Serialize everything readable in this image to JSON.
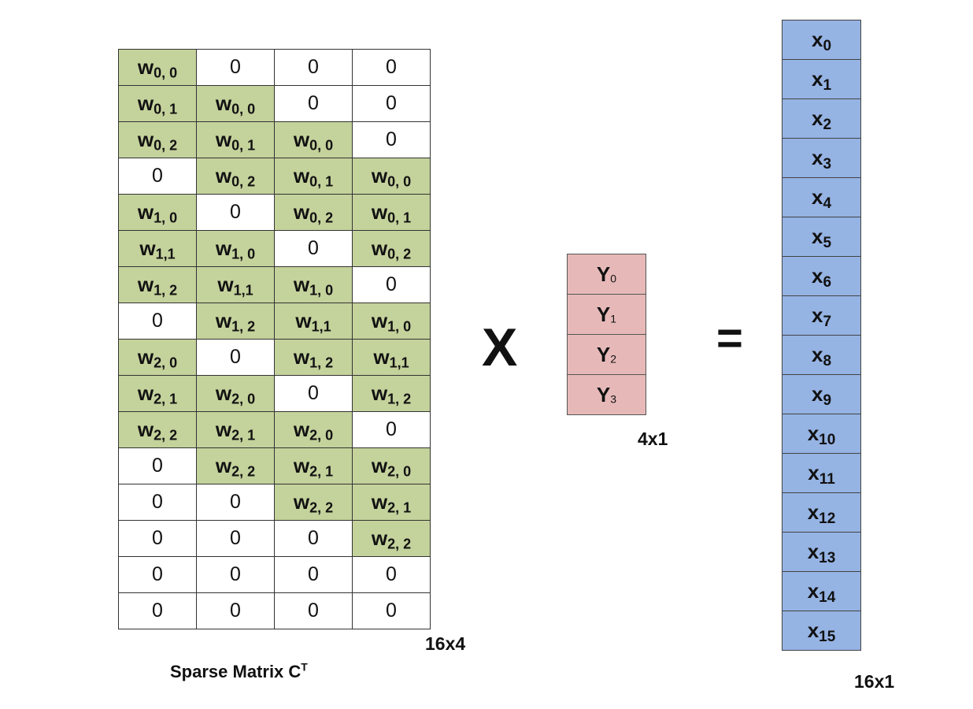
{
  "matrix": {
    "caption_main": "Sparse Matrix C",
    "caption_sup": "T",
    "dimension": "16x4",
    "nonzero_color": "#c4d29c",
    "zero_color": "#ffffff",
    "rows": [
      [
        {
          "w": "w",
          "s": "0, 0"
        },
        {
          "z": "0"
        },
        {
          "z": "0"
        },
        {
          "z": "0"
        }
      ],
      [
        {
          "w": "w",
          "s": "0, 1"
        },
        {
          "w": "w",
          "s": "0, 0"
        },
        {
          "z": "0"
        },
        {
          "z": "0"
        }
      ],
      [
        {
          "w": "w",
          "s": "0, 2"
        },
        {
          "w": "w",
          "s": "0, 1"
        },
        {
          "w": "w",
          "s": "0, 0"
        },
        {
          "z": "0"
        }
      ],
      [
        {
          "z": "0"
        },
        {
          "w": "w",
          "s": "0, 2"
        },
        {
          "w": "w",
          "s": "0, 1"
        },
        {
          "w": "w",
          "s": "0, 0"
        }
      ],
      [
        {
          "w": "w",
          "s": "1, 0"
        },
        {
          "z": "0"
        },
        {
          "w": "w",
          "s": "0, 2"
        },
        {
          "w": "w",
          "s": "0, 1"
        }
      ],
      [
        {
          "w": "w",
          "s": "1,1"
        },
        {
          "w": "w",
          "s": "1, 0"
        },
        {
          "z": "0"
        },
        {
          "w": "w",
          "s": "0, 2"
        }
      ],
      [
        {
          "w": "w",
          "s": "1, 2"
        },
        {
          "w": "w",
          "s": "1,1"
        },
        {
          "w": "w",
          "s": "1, 0"
        },
        {
          "z": "0"
        }
      ],
      [
        {
          "z": "0"
        },
        {
          "w": "w",
          "s": "1, 2"
        },
        {
          "w": "w",
          "s": "1,1"
        },
        {
          "w": "w",
          "s": "1, 0"
        }
      ],
      [
        {
          "w": "w",
          "s": "2, 0"
        },
        {
          "z": "0"
        },
        {
          "w": "w",
          "s": "1, 2"
        },
        {
          "w": "w",
          "s": "1,1"
        }
      ],
      [
        {
          "w": "w",
          "s": "2, 1"
        },
        {
          "w": "w",
          "s": "2, 0"
        },
        {
          "z": "0"
        },
        {
          "w": "w",
          "s": "1, 2"
        }
      ],
      [
        {
          "w": "w",
          "s": "2, 2"
        },
        {
          "w": "w",
          "s": "2, 1"
        },
        {
          "w": "w",
          "s": "2, 0"
        },
        {
          "z": "0"
        }
      ],
      [
        {
          "z": "0"
        },
        {
          "w": "w",
          "s": "2, 2"
        },
        {
          "w": "w",
          "s": "2, 1"
        },
        {
          "w": "w",
          "s": "2, 0"
        }
      ],
      [
        {
          "z": "0"
        },
        {
          "z": "0"
        },
        {
          "w": "w",
          "s": "2, 2"
        },
        {
          "w": "w",
          "s": "2, 1"
        }
      ],
      [
        {
          "z": "0"
        },
        {
          "z": "0"
        },
        {
          "z": "0"
        },
        {
          "w": "w",
          "s": "2, 2"
        }
      ],
      [
        {
          "z": "0"
        },
        {
          "z": "0"
        },
        {
          "z": "0"
        },
        {
          "z": "0"
        }
      ],
      [
        {
          "z": "0"
        },
        {
          "z": "0"
        },
        {
          "z": "0"
        },
        {
          "z": "0"
        }
      ]
    ]
  },
  "operators": {
    "multiply": "X",
    "equals": "="
  },
  "y_vector": {
    "dimension": "4x1",
    "color": "#e6b9b8",
    "entries": [
      {
        "base": "Y",
        "sub": "0"
      },
      {
        "base": "Y",
        "sub": "1"
      },
      {
        "base": "Y",
        "sub": "2"
      },
      {
        "base": "Y",
        "sub": "3"
      }
    ]
  },
  "x_vector": {
    "dimension": "16x1",
    "color": "#95b3e3",
    "entries": [
      {
        "base": "x",
        "sub": "0"
      },
      {
        "base": "x",
        "sub": "1"
      },
      {
        "base": "x",
        "sub": "2"
      },
      {
        "base": "x",
        "sub": "3"
      },
      {
        "base": "x",
        "sub": "4"
      },
      {
        "base": "x",
        "sub": "5"
      },
      {
        "base": "x",
        "sub": "6"
      },
      {
        "base": "x",
        "sub": "7"
      },
      {
        "base": "x",
        "sub": "8"
      },
      {
        "base": "x",
        "sub": "9"
      },
      {
        "base": "x",
        "sub": "10"
      },
      {
        "base": "x",
        "sub": "11"
      },
      {
        "base": "x",
        "sub": "12"
      },
      {
        "base": "x",
        "sub": "13"
      },
      {
        "base": "x",
        "sub": "14"
      },
      {
        "base": "x",
        "sub": "15"
      }
    ]
  }
}
